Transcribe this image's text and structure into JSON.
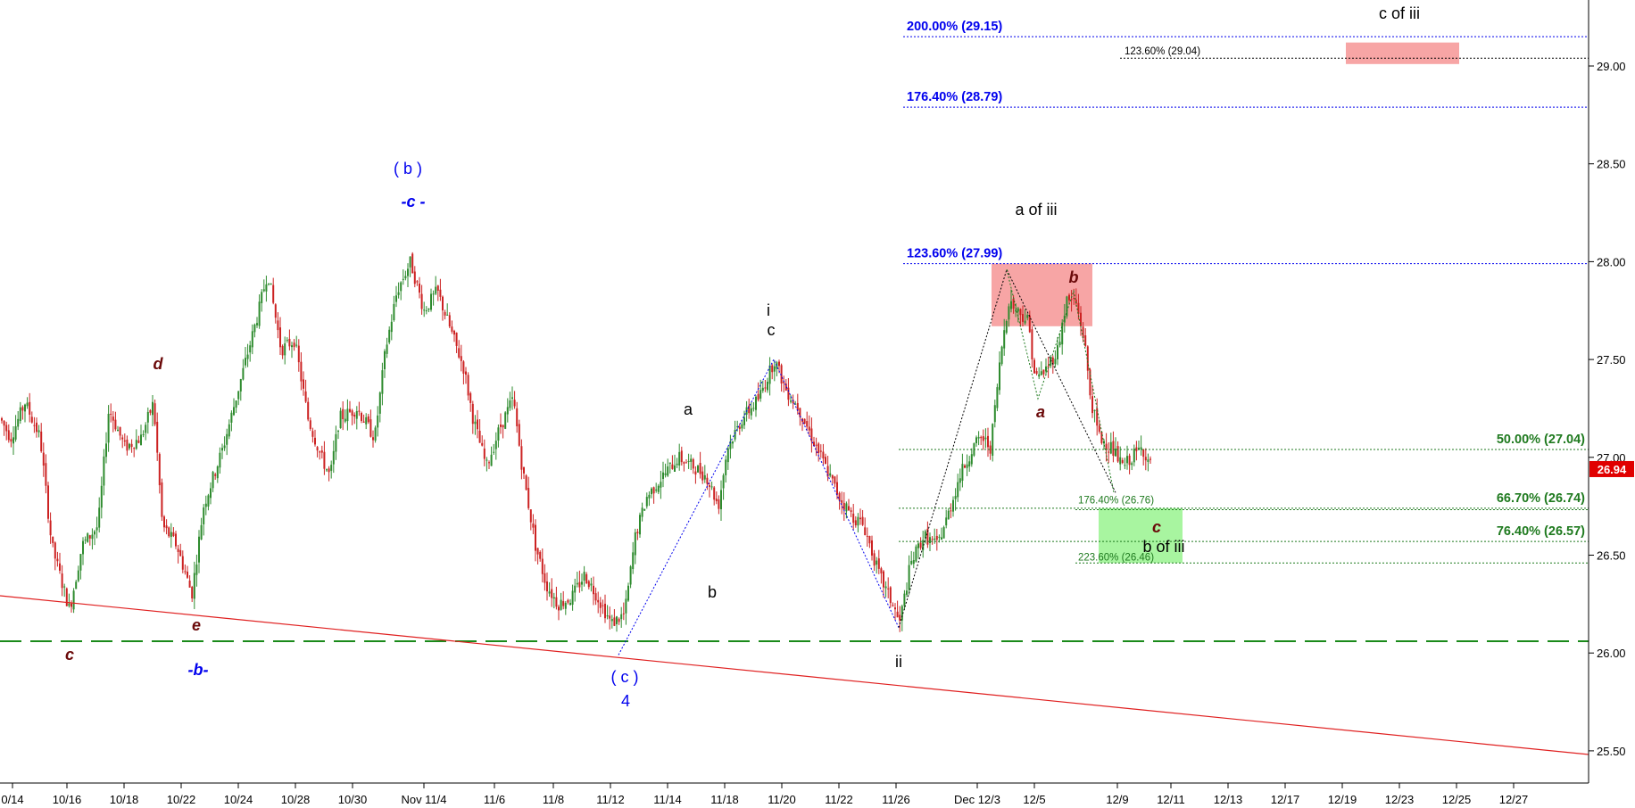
{
  "chart_data": {
    "type": "candlestick",
    "ylim": [
      25.42,
      29.35
    ],
    "y_ticks": [
      "25.50",
      "26.00",
      "26.50",
      "27.00",
      "27.50",
      "28.00",
      "28.50",
      "29.00"
    ],
    "x_tick_labels": [
      "0/14",
      "10/16",
      "10/18",
      "10/22",
      "10/24",
      "10/28",
      "10/30",
      "Nov 11/4",
      "11/6",
      "11/8",
      "11/12",
      "11/14",
      "11/18",
      "11/20",
      "11/22",
      "11/26",
      "Dec 12/3",
      "12/5",
      "12/9",
      "12/11",
      "12/13",
      "12/17",
      "12/19",
      "12/23",
      "12/25",
      "12/27"
    ],
    "last_price": "26.94",
    "support_level": 26.06,
    "fib_levels_blue": [
      {
        "label": "200.00% (29.15)",
        "value": 29.15
      },
      {
        "label": "176.40% (28.79)",
        "value": 28.79
      },
      {
        "label": "123.60% (27.99)",
        "value": 27.99
      }
    ],
    "fib_levels_green": [
      {
        "label": "50.00% (27.04)",
        "value": 27.04
      },
      {
        "label": "66.70% (26.74)",
        "value": 26.74
      },
      {
        "label": "76.40% (26.57)",
        "value": 26.57
      }
    ],
    "fib_levels_small": [
      {
        "label": "123.60% (29.04)",
        "value": 29.04
      },
      {
        "label": "176.40% (26.76)",
        "value": 26.76
      },
      {
        "label": "223.60% (26.46)",
        "value": 26.46
      }
    ],
    "wave_labels": [
      {
        "text": "( b )",
        "style": "blue-bold"
      },
      {
        "text": "-c -",
        "style": "blue-italic"
      },
      {
        "text": "d",
        "style": "maroon-italic"
      },
      {
        "text": "c",
        "style": "maroon-italic"
      },
      {
        "text": "e",
        "style": "maroon-italic"
      },
      {
        "text": "-b-",
        "style": "blue-italic"
      },
      {
        "text": "( c )",
        "style": "blue-bold"
      },
      {
        "text": "4",
        "style": "blue-bold"
      },
      {
        "text": "a",
        "style": "black"
      },
      {
        "text": "b",
        "style": "black"
      },
      {
        "text": "i",
        "style": "black"
      },
      {
        "text": "c",
        "style": "black"
      },
      {
        "text": "ii",
        "style": "black"
      },
      {
        "text": "a of iii",
        "style": "black"
      },
      {
        "text": "a",
        "style": "maroon-italic"
      },
      {
        "text": "b",
        "style": "maroon-italic"
      },
      {
        "text": "c",
        "style": "maroon-italic"
      },
      {
        "text": "b of iii",
        "style": "black"
      },
      {
        "text": "c of iii",
        "style": "black"
      }
    ],
    "colors": {
      "up": "#2e8b2e",
      "down": "#cc2222",
      "fib_blue": "#0000ee",
      "fib_green": "#1f7a1f",
      "trendline": "#e02020",
      "support": "#1a8a1a",
      "target_red": "#f7a5a5",
      "target_green": "#a8f5a0"
    }
  }
}
